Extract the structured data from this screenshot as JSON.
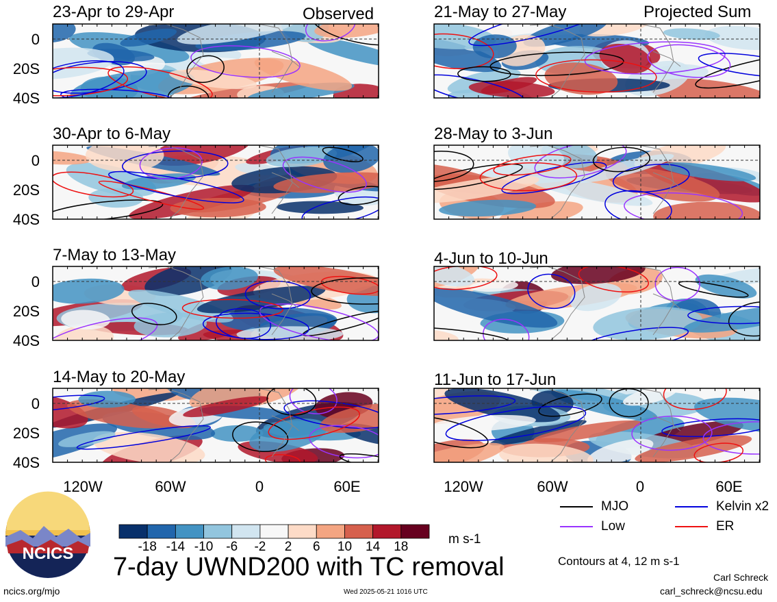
{
  "chart_data": {
    "type": "heatmap",
    "title": "7-day UWND200 with TC removal",
    "units": "m s-1",
    "contour_note": "Contours at 4, 12 m s-1",
    "header_left": "Observed",
    "header_right": "Projected Sum",
    "lat_ticks": [
      "0",
      "20S",
      "40S"
    ],
    "lon_ticks": [
      "120W",
      "60W",
      "0",
      "60E"
    ],
    "colorbar": {
      "labels": [
        "-18",
        "-14",
        "-10",
        "-6",
        "-2",
        "2",
        "6",
        "10",
        "14",
        "18"
      ],
      "colors": [
        "#08306b",
        "#2166ac",
        "#4393c3",
        "#92c5de",
        "#d1e5f0",
        "#f7f7f7",
        "#fddbc7",
        "#f4a582",
        "#d6604d",
        "#b2182b",
        "#67001f"
      ]
    },
    "legend": [
      {
        "label": "MJO",
        "color": "#000000"
      },
      {
        "label": "Kelvin x2",
        "color": "#0000dd"
      },
      {
        "label": "Low",
        "color": "#9933ff"
      },
      {
        "label": "ER",
        "color": "#ee1111"
      }
    ],
    "panels": [
      {
        "label": "23-Apr to 29-Apr"
      },
      {
        "label": "30-Apr to 6-May"
      },
      {
        "label": "7-May to 13-May"
      },
      {
        "label": "14-May to 20-May"
      },
      {
        "label": "21-May to 27-May"
      },
      {
        "label": "28-May to 3-Jun"
      },
      {
        "label": "4-Jun to 10-Jun"
      },
      {
        "label": "11-Jun to 17-Jun"
      }
    ]
  },
  "logo": {
    "text": "NCICS"
  },
  "footer": {
    "url": "ncics.org/mjo",
    "timestamp": "Wed 2025-05-21 1016 UTC",
    "author": "Carl Schreck",
    "email": "carl_schreck@ncsu.edu"
  }
}
